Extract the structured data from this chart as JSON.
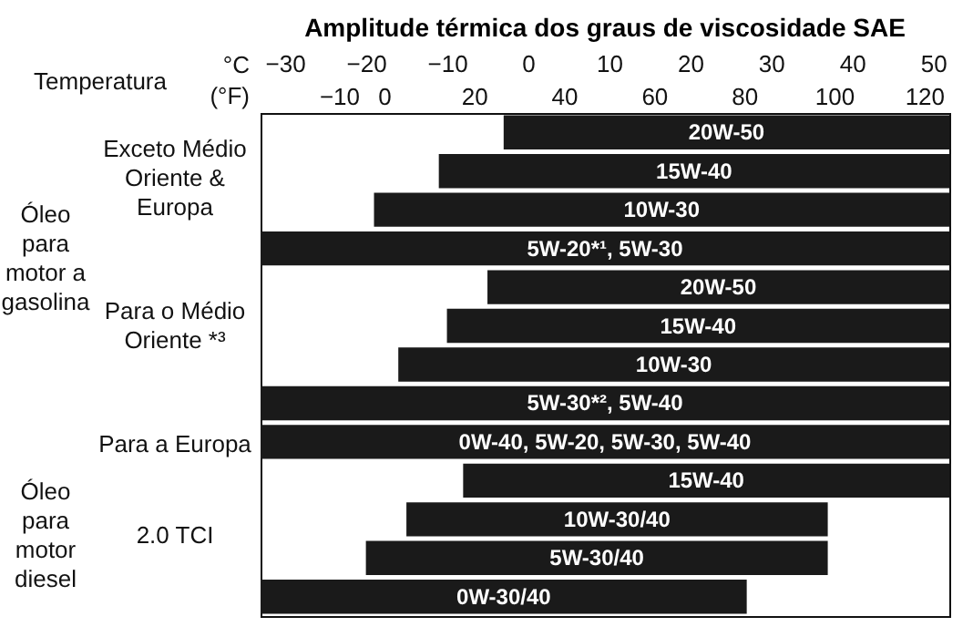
{
  "chart_data": {
    "type": "bar",
    "orientation": "horizontal",
    "title": "Amplitude térmica dos graus de viscosidade SAE",
    "xlabel": "°C",
    "x2label": "(°F)",
    "categories": [
      "20W-50",
      "15W-40",
      "10W-30",
      "5W-20*¹, 5W-30",
      "20W-50",
      "15W-40",
      "10W-30",
      "5W-30*², 5W-40",
      "0W-40, 5W-20, 5W-30, 5W-40",
      "15W-40",
      "10W-30/40",
      "5W-30/40",
      "0W-30/40"
    ],
    "base": [
      -3,
      -11,
      -19,
      -33,
      -5,
      -10,
      -16,
      -33,
      -33,
      -8,
      -15,
      -20,
      -33
    ],
    "values": [
      55,
      63,
      71,
      85,
      57,
      62,
      68,
      85,
      85,
      60,
      52,
      57,
      60
    ],
    "color": "#1a1a1a",
    "xlim": [
      -33,
      52
    ],
    "xticks": [
      -30,
      -20,
      -10,
      0,
      10,
      20,
      30,
      40,
      50
    ],
    "x2lim": [
      -27.4,
      125.6
    ],
    "x2ticks": [
      -10,
      0,
      20,
      40,
      60,
      80,
      100,
      120
    ],
    "grid": false,
    "annotations": [
      "Temperatura",
      "Óleo\npara\nmotor a\ngasolina",
      "Exceto Médio\nOriente &\nEuropa",
      "Para o Médio\nOriente *³",
      "Para a Europa",
      "Óleo\npara\nmotor\ndiesel",
      "2.0 TCI"
    ]
  }
}
